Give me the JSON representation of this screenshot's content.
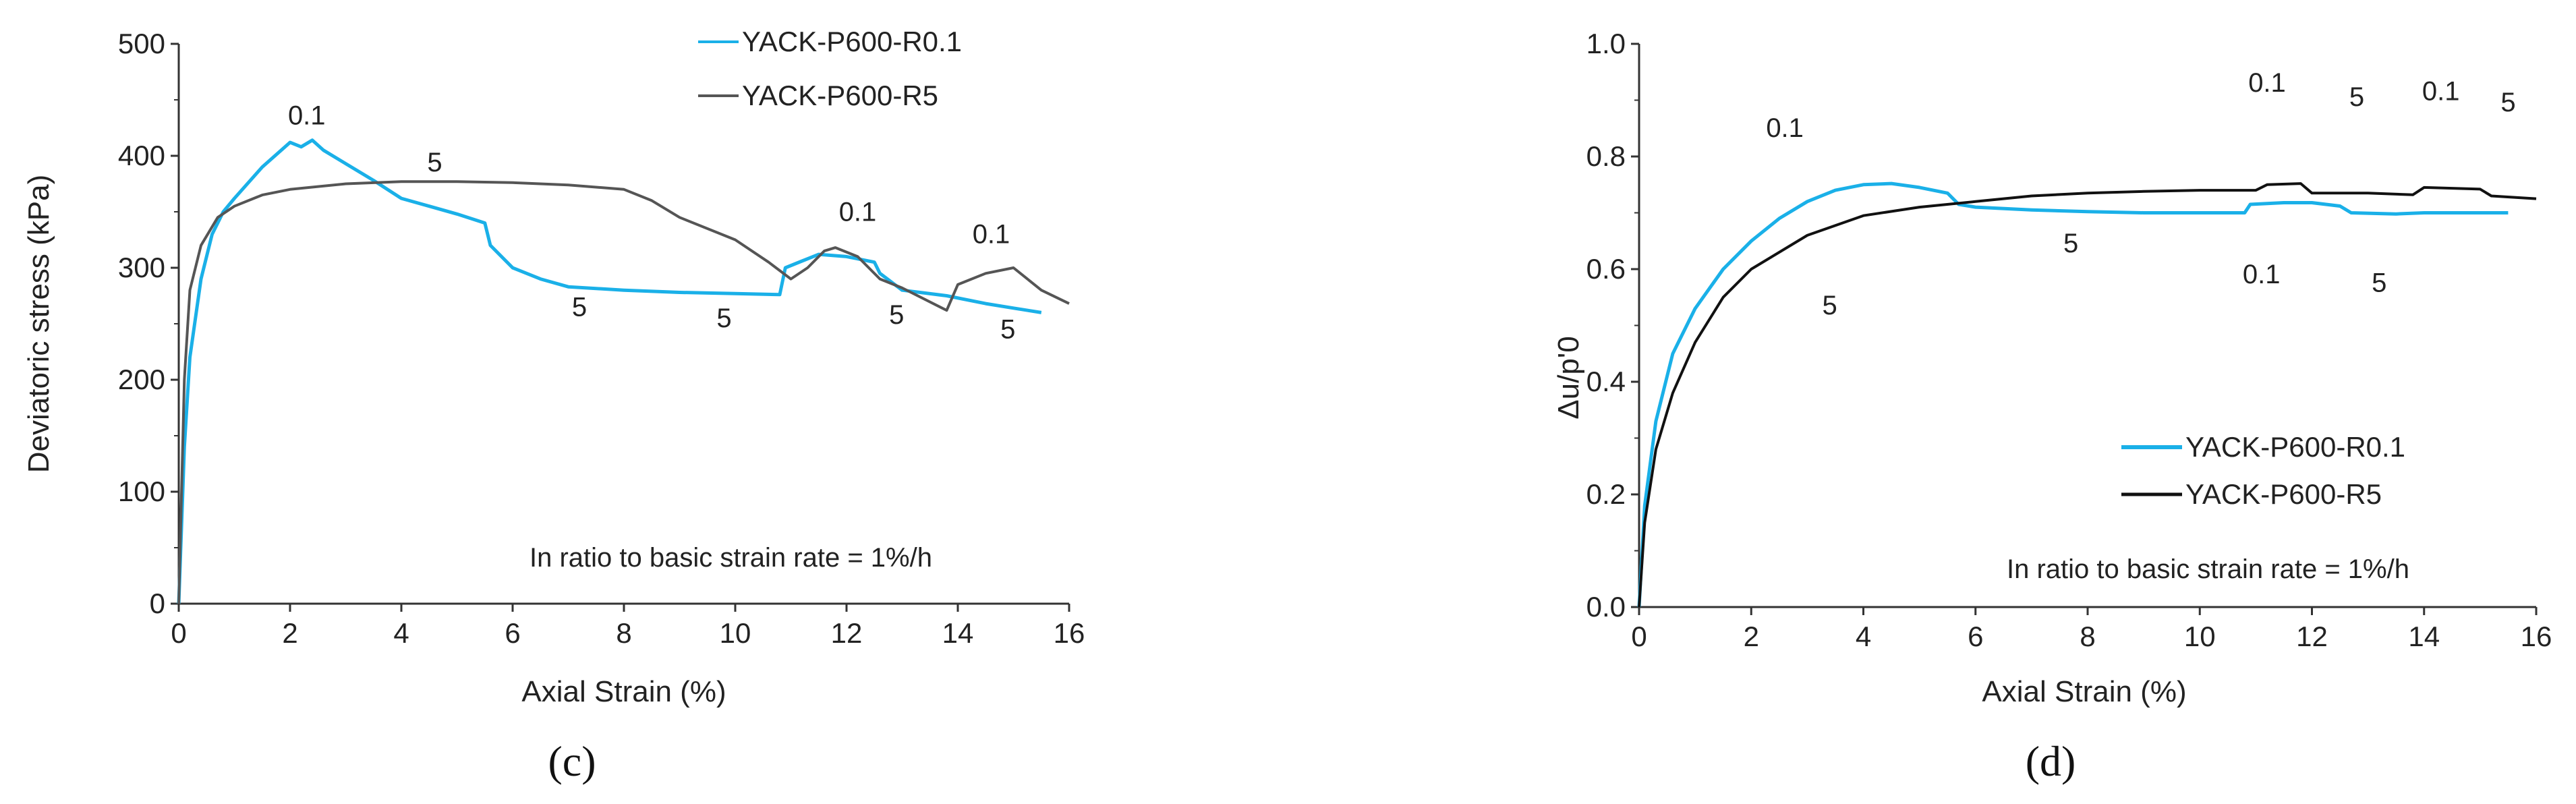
{
  "chart_data": [
    {
      "type": "line",
      "panel": "(c)",
      "xlabel": "Axial Strain (%)",
      "ylabel": "Deviatoric stress (kPa)",
      "xlim": [
        0,
        16
      ],
      "ylim": [
        0,
        500
      ],
      "xticks": [
        0,
        2,
        4,
        6,
        8,
        10,
        12,
        14,
        16
      ],
      "yticks": [
        0,
        100,
        200,
        300,
        400,
        500
      ],
      "legend_position": "top-right",
      "note": "In ratio to basic strain rate = 1%/h",
      "series": [
        {
          "name": "YACK-P600-R0.1",
          "color": "#1ab0e8",
          "x": [
            0,
            0.1,
            0.2,
            0.4,
            0.6,
            0.8,
            1.0,
            1.5,
            2.0,
            2.2,
            2.4,
            2.6,
            3.0,
            3.5,
            4.0,
            4.5,
            5.0,
            5.5,
            5.6,
            6.0,
            6.5,
            7.0,
            8.0,
            9.0,
            10.0,
            10.8,
            10.9,
            11.2,
            11.5,
            12.0,
            12.5,
            12.6,
            13.0,
            13.8,
            14.5,
            15.0,
            15.5
          ],
          "y": [
            0,
            140,
            220,
            290,
            330,
            350,
            362,
            390,
            412,
            408,
            414,
            405,
            393,
            378,
            362,
            355,
            348,
            340,
            320,
            300,
            290,
            283,
            280,
            278,
            277,
            276,
            300,
            306,
            312,
            310,
            305,
            295,
            280,
            275,
            268,
            264,
            260
          ]
        },
        {
          "name": "YACK-P600-R5",
          "color": "#555555",
          "x": [
            0,
            0.1,
            0.2,
            0.4,
            0.7,
            1.0,
            1.5,
            2.0,
            3.0,
            4.0,
            5.0,
            6.0,
            7.0,
            8.0,
            8.5,
            9.0,
            10.0,
            10.6,
            11.0,
            11.3,
            11.6,
            11.8,
            12.2,
            12.6,
            13.0,
            13.8,
            14.0,
            14.5,
            15.0,
            15.5,
            16.0
          ],
          "y": [
            0,
            200,
            280,
            320,
            345,
            355,
            365,
            370,
            375,
            377,
            377,
            376,
            374,
            370,
            360,
            345,
            325,
            305,
            290,
            300,
            315,
            318,
            310,
            290,
            282,
            262,
            285,
            295,
            300,
            280,
            268
          ]
        }
      ],
      "annotations": [
        {
          "text": "0.1",
          "x": 2.3,
          "y": 428
        },
        {
          "text": "5",
          "x": 4.6,
          "y": 386
        },
        {
          "text": "5",
          "x": 7.2,
          "y": 257
        },
        {
          "text": "5",
          "x": 9.8,
          "y": 247
        },
        {
          "text": "0.1",
          "x": 12.2,
          "y": 342
        },
        {
          "text": "5",
          "x": 12.9,
          "y": 250
        },
        {
          "text": "0.1",
          "x": 14.6,
          "y": 322
        },
        {
          "text": "5",
          "x": 14.9,
          "y": 237
        }
      ]
    },
    {
      "type": "line",
      "panel": "(d)",
      "xlabel": "Axial Strain (%)",
      "ylabel": "Δu/p'0",
      "xlim": [
        0,
        16
      ],
      "ylim": [
        0,
        1.0
      ],
      "xticks": [
        0,
        2,
        4,
        6,
        8,
        10,
        12,
        14,
        16
      ],
      "yticks": [
        0.0,
        0.2,
        0.4,
        0.6,
        0.8,
        1.0
      ],
      "legend_position": "bottom-right",
      "note": "In ratio to basic strain rate = 1%/h",
      "series": [
        {
          "name": "YACK-P600-R0.1",
          "color": "#1ab0e8",
          "x": [
            0,
            0.1,
            0.3,
            0.6,
            1.0,
            1.5,
            2.0,
            2.5,
            3.0,
            3.5,
            4.0,
            4.5,
            5.0,
            5.5,
            5.7,
            6.0,
            7.0,
            8.0,
            9.0,
            10.0,
            10.8,
            10.9,
            11.5,
            12.0,
            12.5,
            12.7,
            13.5,
            14.0,
            14.5,
            15.0,
            15.5
          ],
          "y": [
            0,
            0.18,
            0.33,
            0.45,
            0.53,
            0.6,
            0.65,
            0.69,
            0.72,
            0.74,
            0.75,
            0.752,
            0.745,
            0.735,
            0.715,
            0.71,
            0.705,
            0.702,
            0.7,
            0.7,
            0.7,
            0.715,
            0.718,
            0.718,
            0.712,
            0.7,
            0.698,
            0.7,
            0.7,
            0.7,
            0.7
          ]
        },
        {
          "name": "YACK-P600-R5",
          "color": "#111111",
          "x": [
            0,
            0.1,
            0.3,
            0.6,
            1.0,
            1.5,
            2.0,
            3.0,
            4.0,
            5.0,
            6.0,
            7.0,
            8.0,
            9.0,
            10.0,
            11.0,
            11.2,
            11.8,
            12.0,
            13.0,
            13.8,
            14.0,
            15.0,
            15.2,
            16.0
          ],
          "y": [
            0,
            0.15,
            0.28,
            0.38,
            0.47,
            0.55,
            0.6,
            0.66,
            0.695,
            0.71,
            0.72,
            0.73,
            0.735,
            0.738,
            0.74,
            0.74,
            0.75,
            0.752,
            0.735,
            0.735,
            0.732,
            0.745,
            0.742,
            0.73,
            0.725
          ]
        }
      ],
      "annotations": [
        {
          "text": "0.1",
          "x": 2.6,
          "y": 0.835
        },
        {
          "text": "5",
          "x": 3.4,
          "y": 0.52
        },
        {
          "text": "5",
          "x": 7.7,
          "y": 0.63
        },
        {
          "text": "0.1",
          "x": 11.1,
          "y": 0.575
        },
        {
          "text": "0.1",
          "x": 11.2,
          "y": 0.915
        },
        {
          "text": "5",
          "x": 12.8,
          "y": 0.89
        },
        {
          "text": "0.1",
          "x": 14.3,
          "y": 0.9
        },
        {
          "text": "5",
          "x": 13.2,
          "y": 0.56
        },
        {
          "text": "5",
          "x": 15.5,
          "y": 0.88
        }
      ]
    }
  ],
  "captions": [
    "(c)",
    "(d)"
  ]
}
